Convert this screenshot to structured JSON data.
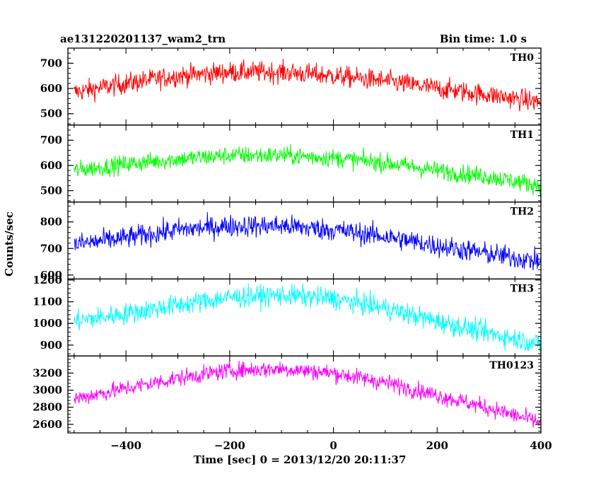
{
  "header": {
    "left_title": "ae131220201137_wam2_trn",
    "right_title": "Bin time: 1.0 s"
  },
  "xlabel": "Time [sec] 0 = 2013/12/20 20:11:37",
  "ylabel": "Counts/sec",
  "chart_data": {
    "type": "line",
    "x_range": [
      -512,
      400
    ],
    "x_ticks": [
      -400,
      -200,
      0,
      200,
      400
    ],
    "bin_time_s": 1.0,
    "panels": [
      {
        "label": "TH0",
        "color": "#ff0000",
        "ylim": [
          455,
          760
        ],
        "yticks": [
          500,
          600,
          700
        ],
        "trend": {
          "x": [
            -500,
            -400,
            -300,
            -200,
            -100,
            0,
            100,
            200,
            300,
            400
          ],
          "y": [
            585,
            620,
            650,
            665,
            665,
            650,
            630,
            600,
            575,
            545
          ]
        },
        "noise_amplitude": 38
      },
      {
        "label": "TH1",
        "color": "#00ff00",
        "ylim": [
          455,
          760
        ],
        "yticks": [
          500,
          600,
          700
        ],
        "trend": {
          "x": [
            -500,
            -400,
            -300,
            -200,
            -100,
            0,
            100,
            200,
            300,
            400
          ],
          "y": [
            580,
            605,
            625,
            640,
            640,
            630,
            610,
            580,
            555,
            520
          ]
        },
        "noise_amplitude": 33
      },
      {
        "label": "TH2",
        "color": "#0000ff",
        "ylim": [
          585,
          875
        ],
        "yticks": [
          600,
          700,
          800
        ],
        "trend": {
          "x": [
            -500,
            -400,
            -300,
            -200,
            -100,
            0,
            100,
            200,
            300,
            400
          ],
          "y": [
            715,
            740,
            770,
            785,
            785,
            770,
            745,
            710,
            680,
            650
          ]
        },
        "noise_amplitude": 38
      },
      {
        "label": "TH3",
        "color": "#00ffff",
        "ylim": [
          850,
          1205
        ],
        "yticks": [
          900,
          1000,
          1100,
          1200
        ],
        "trend": {
          "x": [
            -500,
            -400,
            -300,
            -200,
            -100,
            0,
            100,
            200,
            300,
            400
          ],
          "y": [
            1010,
            1045,
            1085,
            1120,
            1130,
            1115,
            1070,
            1010,
            955,
            905
          ]
        },
        "noise_amplitude": 45
      },
      {
        "label": "TH0123",
        "color": "#ff00ff",
        "ylim": [
          2500,
          3400
        ],
        "yticks": [
          2600,
          2800,
          3000,
          3200
        ],
        "trend": {
          "x": [
            -500,
            -400,
            -300,
            -200,
            -100,
            0,
            100,
            200,
            300,
            400
          ],
          "y": [
            2900,
            3020,
            3140,
            3230,
            3250,
            3200,
            3090,
            2940,
            2790,
            2620
          ]
        },
        "noise_amplitude": 90
      }
    ]
  }
}
